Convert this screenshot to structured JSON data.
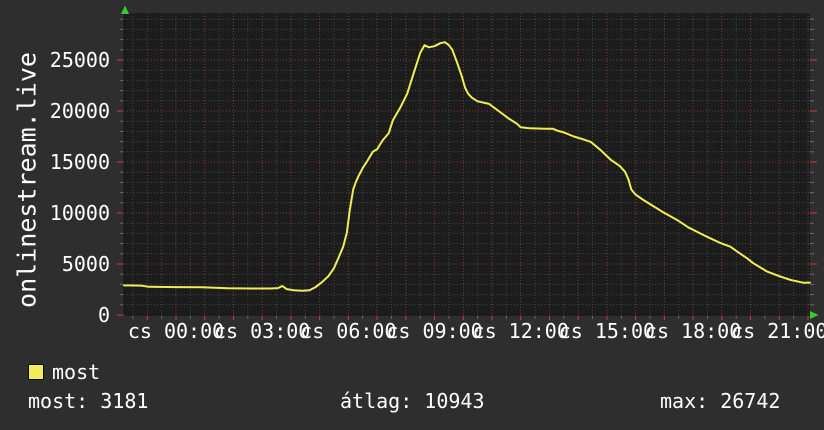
{
  "colors": {
    "background": "#2e2e2e",
    "canvas": "#1c1c1c",
    "text": "#ffffff",
    "line": "#f0ee55",
    "grid_minor": "#464646",
    "grid_major": "#823c3c",
    "tick_minor": "#6a6a6a",
    "tick_major": "#c34242",
    "axis_arrow": "#33cc33"
  },
  "legend": {
    "label": "most",
    "swatch_color": "#f0ee55"
  },
  "footer": {
    "most_text": "most: 3181",
    "atlag_text": "átlag: 10943",
    "max_text": "max: 26742"
  },
  "chart_data": {
    "type": "line",
    "title": "",
    "ylabel": "onlinestream.live",
    "xlabel": "",
    "x_range_hours": [
      -1.81,
      22.07
    ],
    "ylim": [
      0,
      29600
    ],
    "grid": {
      "x_minor_step_hours": 0.5,
      "x_major_step_hours": 1,
      "y_minor_step": 1000,
      "y_major_step": 5000
    },
    "legend_position": "bottom-left",
    "y_ticks": [
      {
        "value": 0,
        "label": "0"
      },
      {
        "value": 5000,
        "label": "5000"
      },
      {
        "value": 10000,
        "label": "10000"
      },
      {
        "value": 15000,
        "label": "15000"
      },
      {
        "value": 20000,
        "label": "20000"
      },
      {
        "value": 25000,
        "label": "25000"
      }
    ],
    "x_ticks": [
      {
        "hour": 0,
        "label": "cs 00:00"
      },
      {
        "hour": 3,
        "label": "cs 03:00"
      },
      {
        "hour": 6,
        "label": "cs 06:00"
      },
      {
        "hour": 9,
        "label": "cs 09:00"
      },
      {
        "hour": 12,
        "label": "cs 12:00"
      },
      {
        "hour": 15,
        "label": "cs 15:00"
      },
      {
        "hour": 18,
        "label": "cs 18:00"
      },
      {
        "hour": 21,
        "label": "cs 21:00"
      }
    ],
    "stats": {
      "most": 3181,
      "atlag": 10943,
      "max": 26742
    },
    "series": [
      {
        "name": "most",
        "color": "#f0ee55",
        "points": [
          [
            -1.81,
            2900
          ],
          [
            -1.2,
            2880
          ],
          [
            -0.95,
            2760
          ],
          [
            0,
            2740
          ],
          [
            0.9,
            2730
          ],
          [
            1.8,
            2620
          ],
          [
            2.6,
            2600
          ],
          [
            3.3,
            2600
          ],
          [
            3.55,
            2640
          ],
          [
            3.7,
            2840
          ],
          [
            3.85,
            2540
          ],
          [
            4.1,
            2430
          ],
          [
            4.4,
            2370
          ],
          [
            4.65,
            2420
          ],
          [
            4.85,
            2720
          ],
          [
            5.1,
            3260
          ],
          [
            5.3,
            3780
          ],
          [
            5.5,
            4600
          ],
          [
            5.7,
            5880
          ],
          [
            5.82,
            6700
          ],
          [
            5.95,
            8100
          ],
          [
            6.05,
            10300
          ],
          [
            6.17,
            12300
          ],
          [
            6.25,
            12950
          ],
          [
            6.35,
            13600
          ],
          [
            6.5,
            14400
          ],
          [
            6.65,
            15050
          ],
          [
            6.85,
            16000
          ],
          [
            7,
            16250
          ],
          [
            7.2,
            17150
          ],
          [
            7.4,
            17800
          ],
          [
            7.55,
            19100
          ],
          [
            7.8,
            20300
          ],
          [
            8.05,
            21700
          ],
          [
            8.25,
            23500
          ],
          [
            8.5,
            25700
          ],
          [
            8.65,
            26450
          ],
          [
            8.8,
            26250
          ],
          [
            9,
            26350
          ],
          [
            9.2,
            26650
          ],
          [
            9.36,
            26742
          ],
          [
            9.5,
            26450
          ],
          [
            9.62,
            26000
          ],
          [
            9.78,
            24800
          ],
          [
            9.95,
            23400
          ],
          [
            10.06,
            22300
          ],
          [
            10.17,
            21700
          ],
          [
            10.3,
            21300
          ],
          [
            10.5,
            20950
          ],
          [
            10.9,
            20700
          ],
          [
            11.28,
            19900
          ],
          [
            11.56,
            19300
          ],
          [
            11.87,
            18750
          ],
          [
            12,
            18400
          ],
          [
            12.3,
            18300
          ],
          [
            12.85,
            18250
          ],
          [
            13.12,
            18250
          ],
          [
            13.3,
            18050
          ],
          [
            13.5,
            17900
          ],
          [
            13.85,
            17500
          ],
          [
            14.2,
            17200
          ],
          [
            14.45,
            16950
          ],
          [
            14.77,
            16200
          ],
          [
            15.12,
            15250
          ],
          [
            15.45,
            14600
          ],
          [
            15.63,
            14050
          ],
          [
            15.75,
            13300
          ],
          [
            15.85,
            12300
          ],
          [
            16,
            11800
          ],
          [
            16.27,
            11270
          ],
          [
            16.6,
            10700
          ],
          [
            16.93,
            10130
          ],
          [
            17.45,
            9300
          ],
          [
            17.83,
            8600
          ],
          [
            18.36,
            7840
          ],
          [
            18.6,
            7520
          ],
          [
            19,
            7000
          ],
          [
            19.3,
            6700
          ],
          [
            19.6,
            6100
          ],
          [
            19.88,
            5560
          ],
          [
            20.1,
            5070
          ],
          [
            20.35,
            4650
          ],
          [
            20.58,
            4250
          ],
          [
            21,
            3800
          ],
          [
            21.4,
            3430
          ],
          [
            21.83,
            3170
          ],
          [
            22.07,
            3181
          ]
        ]
      }
    ]
  }
}
